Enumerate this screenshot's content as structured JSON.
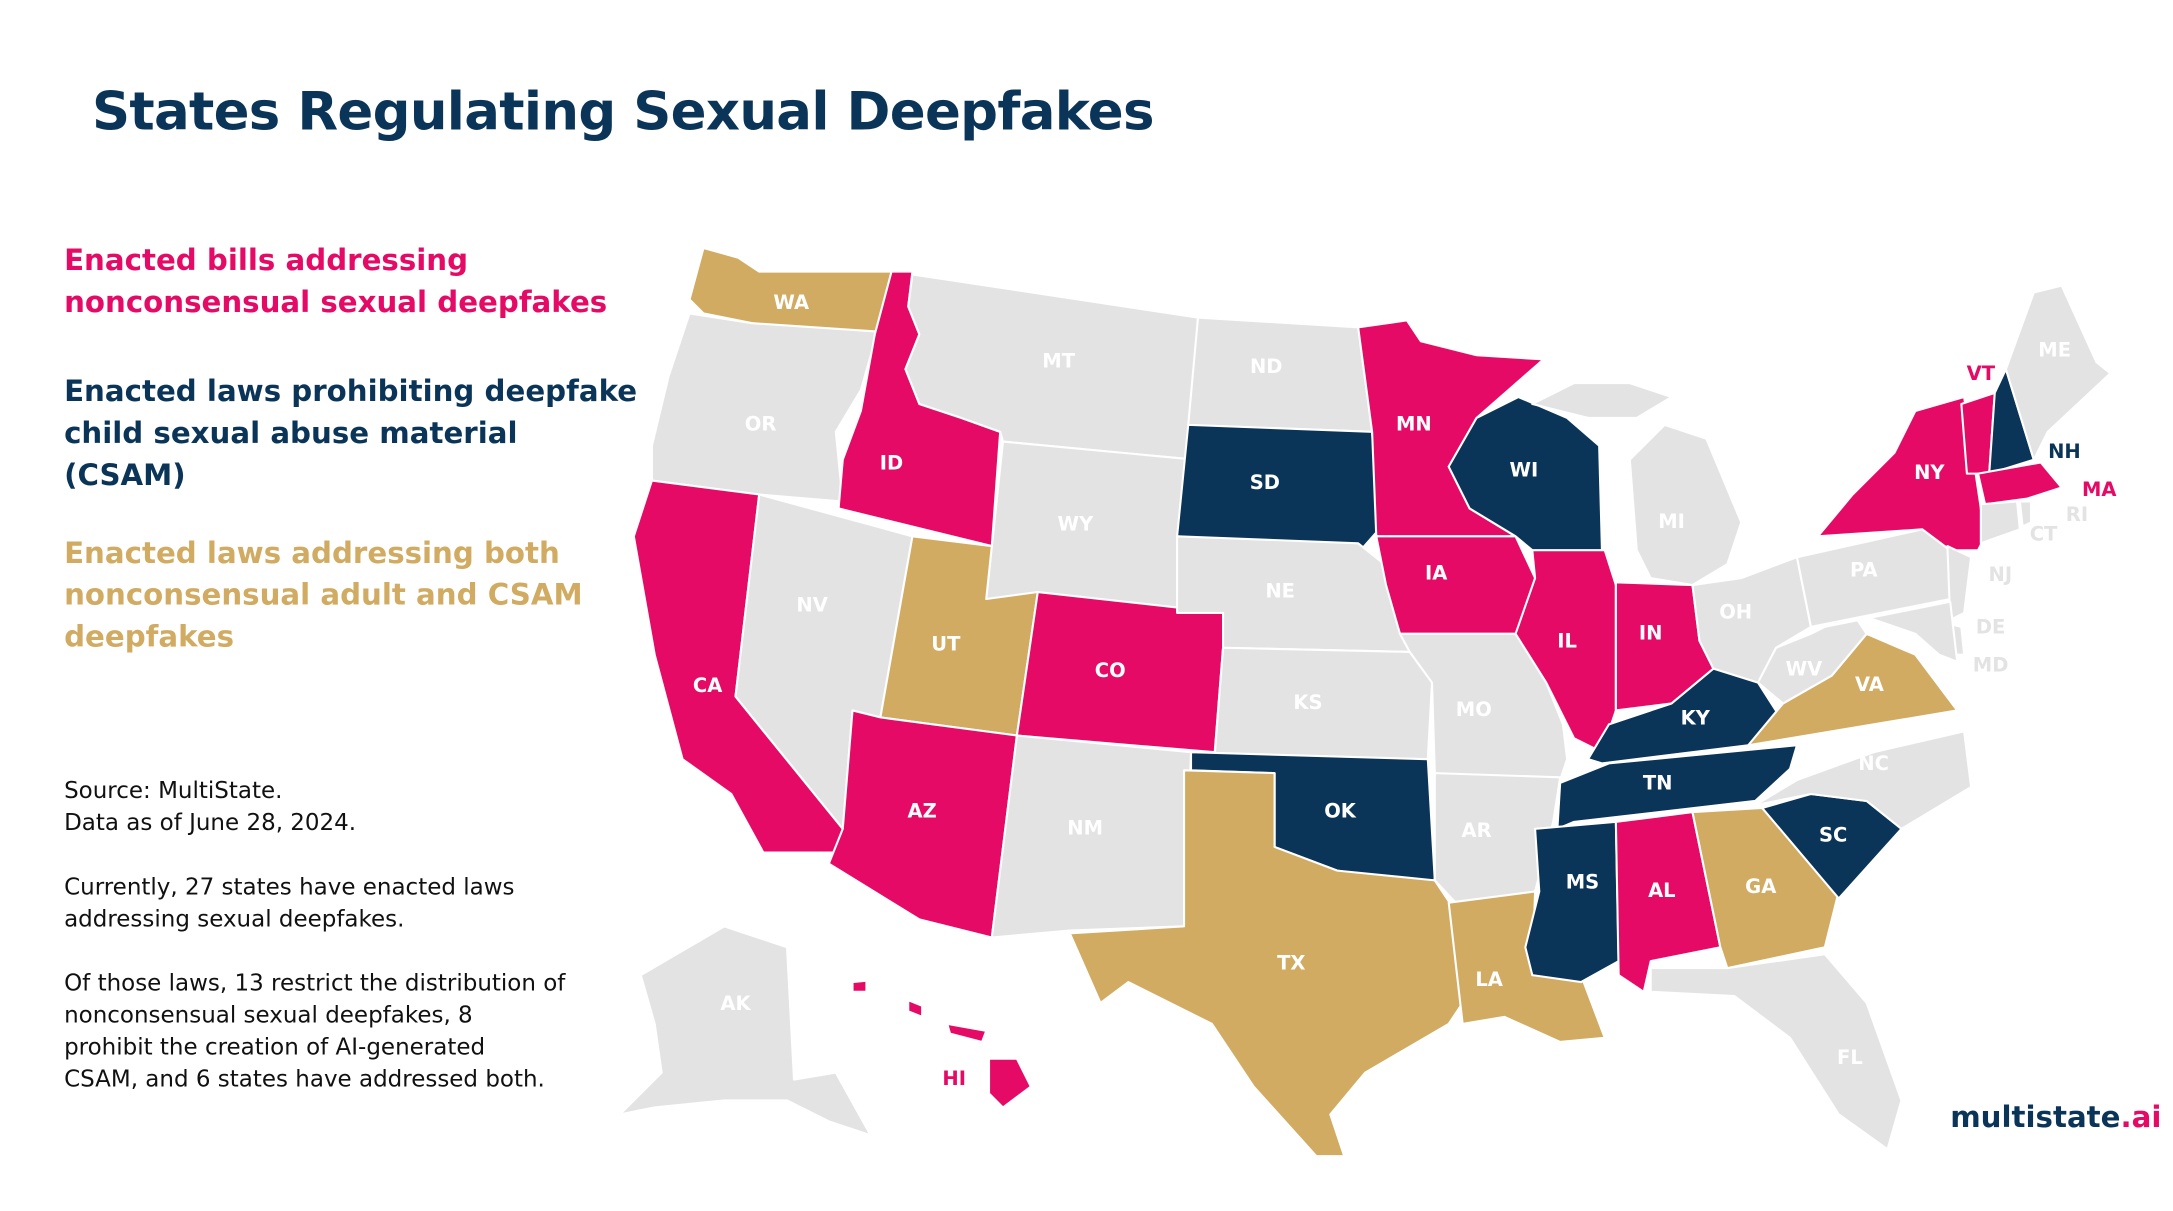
{
  "title": "States Regulating Sexual Deepfakes",
  "legend": {
    "nonconsensual": "Enacted bills addressing nonconsensual sexual deepfakes",
    "csam": "Enacted laws prohibiting deepfake child sexual abuse material (CSAM)",
    "both": "Enacted laws addressing both nonconsensual adult and CSAM deepfakes"
  },
  "colors": {
    "nonconsensual": "#e50a65",
    "csam": "#0b3558",
    "both": "#d1ab62",
    "none": "#e3e3e3",
    "none_label": "#ffffff"
  },
  "notes": {
    "source": "Source: MultiState.",
    "data_as_of": "Data as of June 28, 2024.",
    "summary1": "Currently, 27 states have enacted laws addressing sexual deepfakes.",
    "summary2": "Of those laws, 13 restrict the distribution of nonconsensual sexual deepfakes, 8 prohibit the creation of AI-generated CSAM, and 6 states have addressed both."
  },
  "logo": {
    "main": "multistate",
    "accent": ".ai"
  },
  "states": [
    {
      "code": "WA",
      "category": "both"
    },
    {
      "code": "OR",
      "category": "none"
    },
    {
      "code": "CA",
      "category": "nonconsensual"
    },
    {
      "code": "ID",
      "category": "nonconsensual"
    },
    {
      "code": "NV",
      "category": "none"
    },
    {
      "code": "MT",
      "category": "none"
    },
    {
      "code": "WY",
      "category": "none"
    },
    {
      "code": "UT",
      "category": "both"
    },
    {
      "code": "AZ",
      "category": "nonconsensual"
    },
    {
      "code": "CO",
      "category": "nonconsensual"
    },
    {
      "code": "NM",
      "category": "none"
    },
    {
      "code": "ND",
      "category": "none"
    },
    {
      "code": "SD",
      "category": "csam"
    },
    {
      "code": "NE",
      "category": "none"
    },
    {
      "code": "KS",
      "category": "none"
    },
    {
      "code": "OK",
      "category": "csam"
    },
    {
      "code": "TX",
      "category": "both"
    },
    {
      "code": "MN",
      "category": "nonconsensual"
    },
    {
      "code": "IA",
      "category": "nonconsensual"
    },
    {
      "code": "MO",
      "category": "none"
    },
    {
      "code": "AR",
      "category": "none"
    },
    {
      "code": "LA",
      "category": "both"
    },
    {
      "code": "WI",
      "category": "csam"
    },
    {
      "code": "IL",
      "category": "nonconsensual"
    },
    {
      "code": "MI",
      "category": "none"
    },
    {
      "code": "IN",
      "category": "nonconsensual"
    },
    {
      "code": "OH",
      "category": "none"
    },
    {
      "code": "KY",
      "category": "csam"
    },
    {
      "code": "TN",
      "category": "csam"
    },
    {
      "code": "MS",
      "category": "csam"
    },
    {
      "code": "AL",
      "category": "nonconsensual"
    },
    {
      "code": "GA",
      "category": "both"
    },
    {
      "code": "FL",
      "category": "none"
    },
    {
      "code": "SC",
      "category": "csam"
    },
    {
      "code": "NC",
      "category": "none"
    },
    {
      "code": "VA",
      "category": "both"
    },
    {
      "code": "WV",
      "category": "none"
    },
    {
      "code": "PA",
      "category": "none"
    },
    {
      "code": "NY",
      "category": "nonconsensual"
    },
    {
      "code": "NJ",
      "category": "none"
    },
    {
      "code": "DE",
      "category": "none"
    },
    {
      "code": "MD",
      "category": "none"
    },
    {
      "code": "VT",
      "category": "nonconsensual"
    },
    {
      "code": "NH",
      "category": "csam"
    },
    {
      "code": "ME",
      "category": "none"
    },
    {
      "code": "MA",
      "category": "nonconsensual"
    },
    {
      "code": "CT",
      "category": "none"
    },
    {
      "code": "RI",
      "category": "none"
    },
    {
      "code": "AK",
      "category": "none"
    },
    {
      "code": "HI",
      "category": "nonconsensual"
    }
  ]
}
